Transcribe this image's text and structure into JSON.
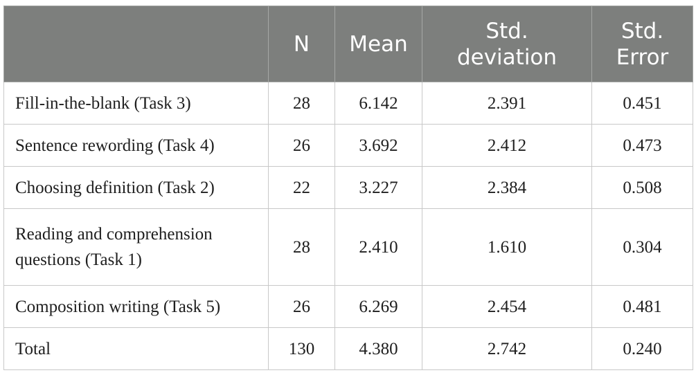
{
  "table": {
    "headers": [
      {
        "lines": [
          ""
        ]
      },
      {
        "lines": [
          "N"
        ]
      },
      {
        "lines": [
          "Mean"
        ]
      },
      {
        "lines": [
          "Std.",
          "deviation"
        ]
      },
      {
        "lines": [
          "Std.",
          "Error"
        ]
      }
    ],
    "rows": [
      {
        "label": "Fill-in-the-blank (Task 3)",
        "n": "28",
        "mean": "6.142",
        "sd": "2.391",
        "se": "0.451"
      },
      {
        "label": "Sentence rewording (Task 4)",
        "n": "26",
        "mean": "3.692",
        "sd": "2.412",
        "se": "0.473"
      },
      {
        "label": "Choosing definition (Task 2)",
        "n": "22",
        "mean": "3.227",
        "sd": "2.384",
        "se": "0.508"
      },
      {
        "label": "Reading and comprehension questions (Task 1)",
        "n": "28",
        "mean": "2.410",
        "sd": "1.610",
        "se": "0.304"
      },
      {
        "label": "Composition writing (Task 5)",
        "n": "26",
        "mean": "6.269",
        "sd": "2.454",
        "se": "0.481"
      },
      {
        "label": "Total",
        "n": "130",
        "mean": "4.380",
        "sd": "2.742",
        "se": "0.240"
      }
    ]
  }
}
